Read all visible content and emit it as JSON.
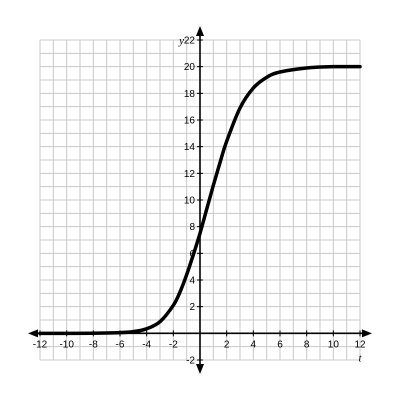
{
  "chart_data": {
    "type": "line",
    "title": "",
    "xlabel": "t",
    "ylabel": "y",
    "xlim": [
      -12,
      12
    ],
    "ylim": [
      -2,
      22
    ],
    "grid": true,
    "x_ticks": [
      -12,
      -10,
      -8,
      -6,
      -4,
      -2,
      2,
      4,
      6,
      8,
      10,
      12
    ],
    "y_ticks": [
      -2,
      2,
      4,
      6,
      8,
      10,
      12,
      14,
      16,
      18,
      20,
      22
    ],
    "x_tick_labels": [
      "-12",
      "-10",
      "-8",
      "-6",
      "-4",
      "-2",
      "2",
      "4",
      "6",
      "8",
      "10",
      "12"
    ],
    "y_tick_labels": [
      "-2",
      "2",
      "4",
      "6",
      "8",
      "10",
      "12",
      "14",
      "16",
      "18",
      "20",
      "22"
    ],
    "series": [
      {
        "x": [
          -12,
          -10,
          -8,
          -6,
          -5,
          -4,
          -3,
          -2,
          -1.5,
          -1,
          -0.5,
          0,
          0.5,
          1,
          1.5,
          2,
          3,
          4,
          5,
          6,
          8,
          10,
          12
        ],
        "y": [
          0,
          0,
          0.01,
          0.05,
          0.13,
          0.34,
          0.87,
          2.1,
          3.1,
          4.4,
          5.9,
          7.5,
          9.3,
          11.1,
          12.8,
          14.4,
          16.9,
          18.4,
          19.2,
          19.6,
          19.9,
          20.0,
          20.0
        ]
      }
    ]
  }
}
